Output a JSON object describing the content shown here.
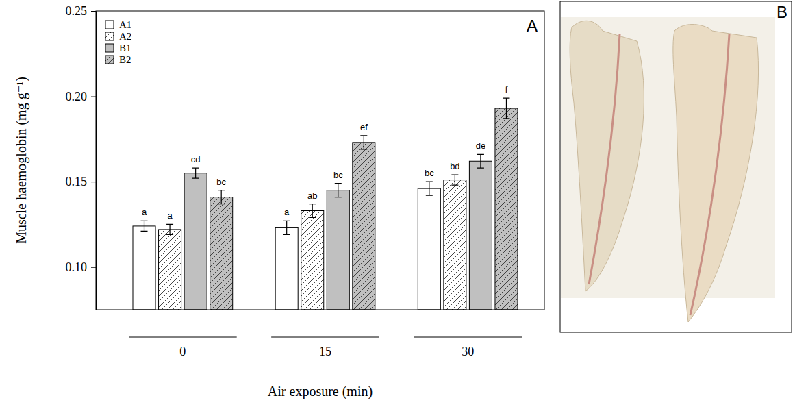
{
  "chart_data": {
    "type": "bar",
    "title": "A",
    "x_label": "Air exposure (min)",
    "y_label": "Muscle haemoglobin (mg g⁻¹)",
    "categories": [
      "0",
      "15",
      "30"
    ],
    "series": [
      {
        "name": "A1",
        "color": "#ffffff",
        "marker": "solid",
        "values": [
          0.124,
          0.123,
          0.146
        ],
        "errors": [
          0.003,
          0.004,
          0.004
        ],
        "letters": [
          "a",
          "a",
          "bc"
        ]
      },
      {
        "name": "A2",
        "color": "#ffffff",
        "marker": "hatched",
        "values": [
          0.122,
          0.133,
          0.151
        ],
        "errors": [
          0.003,
          0.004,
          0.003
        ],
        "letters": [
          "a",
          "ab",
          "bd"
        ]
      },
      {
        "name": "B1",
        "color": "#c0c0c0",
        "marker": "solid",
        "values": [
          0.155,
          0.145,
          0.162
        ],
        "errors": [
          0.003,
          0.004,
          0.004
        ],
        "letters": [
          "cd",
          "bc",
          "de"
        ]
      },
      {
        "name": "B2",
        "color": "#c0c0c0",
        "marker": "hatched",
        "values": [
          0.141,
          0.173,
          0.193
        ],
        "errors": [
          0.004,
          0.004,
          0.006
        ],
        "letters": [
          "bc",
          "ef",
          "f"
        ]
      }
    ],
    "ylim": [
      0.075,
      0.25
    ],
    "yticks": [
      {
        "value": 0.1,
        "label": "0.10"
      },
      {
        "value": 0.15,
        "label": "0.15"
      },
      {
        "value": 0.2,
        "label": "0.20"
      },
      {
        "value": 0.25,
        "label": "0.25"
      }
    ],
    "legend": "upper left",
    "grid": false
  },
  "panel_b": {
    "label": "B"
  }
}
